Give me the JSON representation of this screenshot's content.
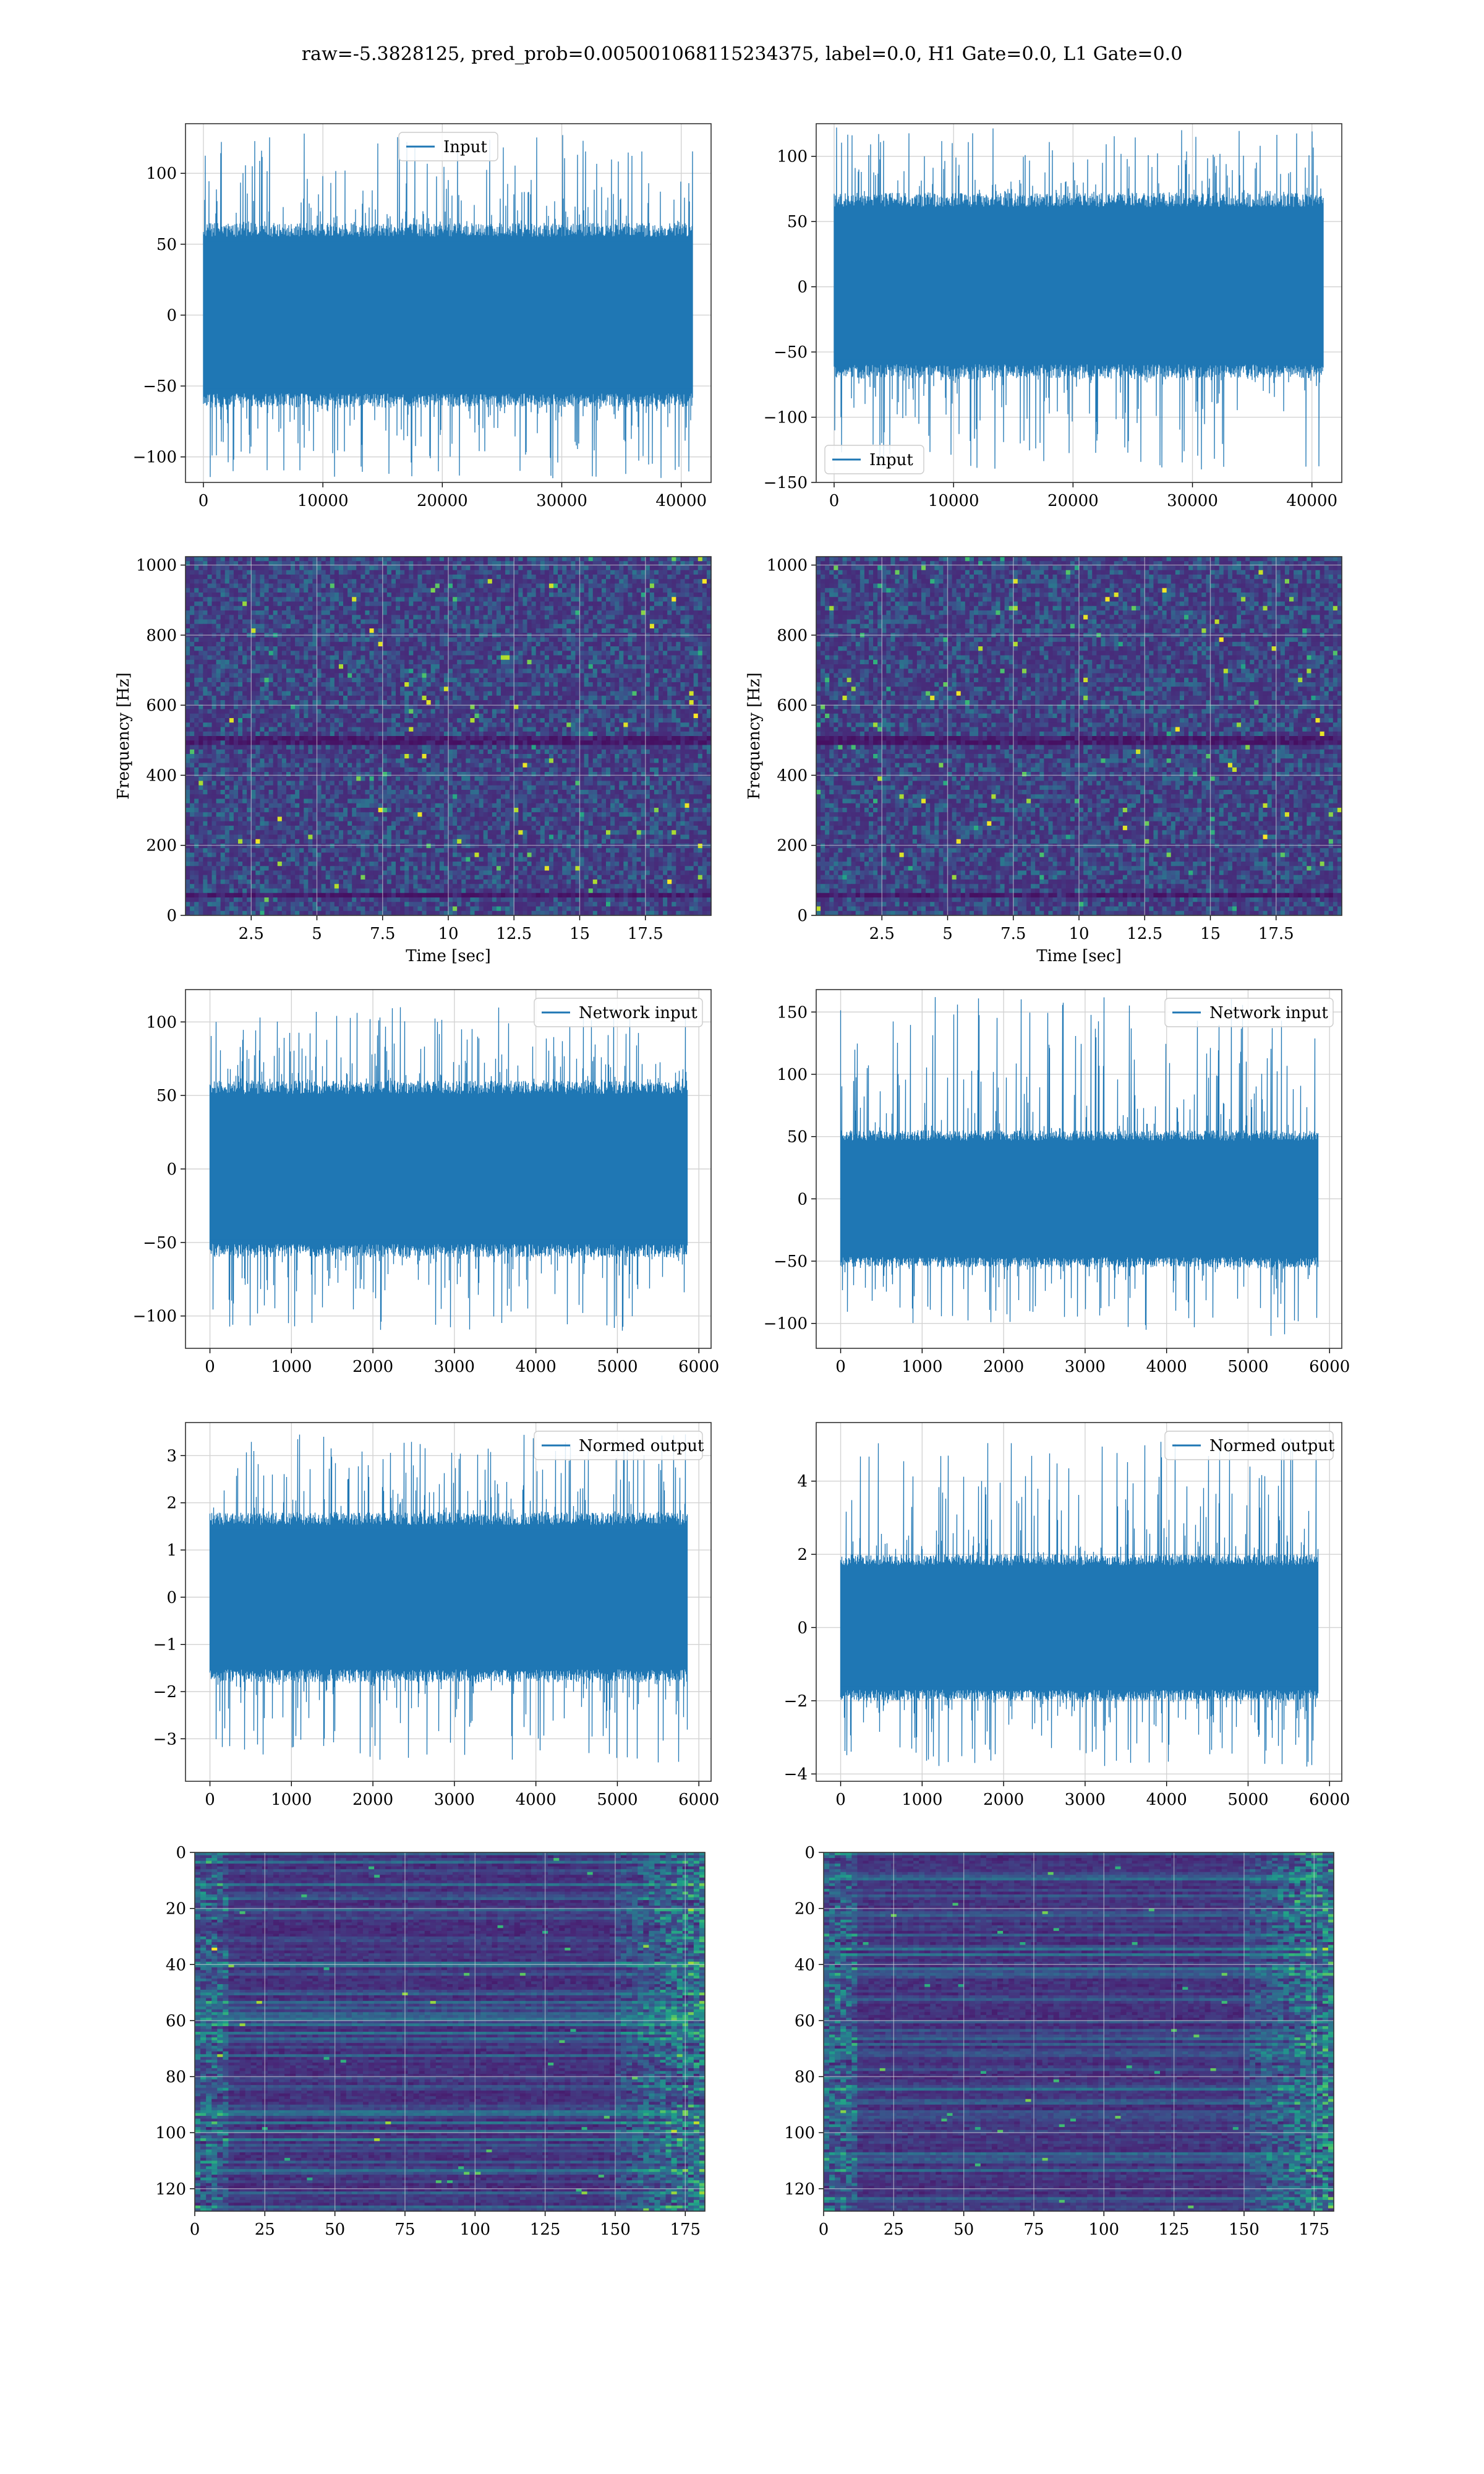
{
  "figure": {
    "suptitle": "raw=-5.3828125, pred_prob=0.005001068115234375, label=0.0, H1 Gate=0.0, L1 Gate=0.0",
    "line_color": "#1f77b4",
    "grid_color": "#d3d3d3"
  },
  "chart_data": [
    {
      "id": "input-h1",
      "type": "line",
      "series": [
        {
          "name": "Input"
        }
      ],
      "legend": "top-center",
      "grid": true,
      "xlim": [
        -1500,
        42500
      ],
      "ylim": [
        -118,
        135
      ],
      "xticks": [
        0,
        10000,
        20000,
        30000,
        40000
      ],
      "yticks": [
        -100,
        -50,
        0,
        50,
        100
      ],
      "x_range": [
        0,
        40960
      ],
      "amplitude_std": 28,
      "band": [
        -65,
        65
      ],
      "extremes": [
        -115,
        128
      ]
    },
    {
      "id": "input-l1",
      "type": "line",
      "series": [
        {
          "name": "Input"
        }
      ],
      "legend": "bottom-left",
      "grid": true,
      "xlim": [
        -1500,
        42500
      ],
      "ylim": [
        -150,
        125
      ],
      "xticks": [
        0,
        10000,
        20000,
        30000,
        40000
      ],
      "yticks": [
        -150,
        -100,
        -50,
        0,
        50,
        100
      ],
      "x_range": [
        0,
        40960
      ],
      "amplitude_std": 28,
      "band": [
        -70,
        72
      ],
      "extremes": [
        -140,
        122
      ]
    },
    {
      "id": "spectrogram-h1",
      "type": "heatmap",
      "colormap": "viridis",
      "xlabel": "Time [sec]",
      "ylabel": "Frequency [Hz]",
      "xlim": [
        0,
        20
      ],
      "ylim": [
        0,
        1024
      ],
      "xticks": [
        2.5,
        5.0,
        7.5,
        10.0,
        12.5,
        15.0,
        17.5
      ],
      "yticks": [
        0,
        200,
        400,
        600,
        800,
        1000
      ],
      "grid": true
    },
    {
      "id": "spectrogram-l1",
      "type": "heatmap",
      "colormap": "viridis",
      "xlabel": "Time [sec]",
      "ylabel": "Frequency [Hz]",
      "xlim": [
        0,
        20
      ],
      "ylim": [
        0,
        1024
      ],
      "xticks": [
        2.5,
        5.0,
        7.5,
        10.0,
        12.5,
        15.0,
        17.5
      ],
      "yticks": [
        0,
        200,
        400,
        600,
        800,
        1000
      ],
      "grid": true
    },
    {
      "id": "network-input-h1",
      "type": "line",
      "series": [
        {
          "name": "Network input"
        }
      ],
      "legend": "top-right",
      "grid": true,
      "xlim": [
        -300,
        6150
      ],
      "ylim": [
        -122,
        122
      ],
      "xticks": [
        0,
        1000,
        2000,
        3000,
        4000,
        5000,
        6000
      ],
      "yticks": [
        -100,
        -50,
        0,
        50,
        100
      ],
      "x_range": [
        0,
        5860
      ],
      "amplitude_std": 27,
      "band": [
        -60,
        60
      ],
      "extremes": [
        -110,
        110
      ]
    },
    {
      "id": "network-input-l1",
      "type": "line",
      "series": [
        {
          "name": "Network input"
        }
      ],
      "legend": "top-right",
      "grid": true,
      "xlim": [
        -300,
        6150
      ],
      "ylim": [
        -120,
        168
      ],
      "xticks": [
        0,
        1000,
        2000,
        3000,
        4000,
        5000,
        6000
      ],
      "yticks": [
        -100,
        -50,
        0,
        50,
        100,
        150
      ],
      "x_range": [
        0,
        5860
      ],
      "amplitude_std": 22,
      "band": [
        -55,
        55
      ],
      "extremes": [
        -110,
        162
      ]
    },
    {
      "id": "normed-output-h1",
      "type": "line",
      "series": [
        {
          "name": "Normed output"
        }
      ],
      "legend": "top-right",
      "grid": true,
      "xlim": [
        -300,
        6150
      ],
      "ylim": [
        -3.9,
        3.7
      ],
      "xticks": [
        0,
        1000,
        2000,
        3000,
        4000,
        5000,
        6000
      ],
      "yticks": [
        -3,
        -2,
        -1,
        0,
        1,
        2,
        3
      ],
      "x_range": [
        0,
        5860
      ],
      "amplitude_std": 0.85,
      "band": [
        -1.8,
        1.8
      ],
      "extremes": [
        -3.5,
        3.45
      ]
    },
    {
      "id": "normed-output-l1",
      "type": "line",
      "series": [
        {
          "name": "Normed output"
        }
      ],
      "legend": "top-right",
      "grid": true,
      "xlim": [
        -300,
        6150
      ],
      "ylim": [
        -4.2,
        5.6
      ],
      "xticks": [
        0,
        1000,
        2000,
        3000,
        4000,
        5000,
        6000
      ],
      "yticks": [
        -4,
        -2,
        0,
        2,
        4
      ],
      "x_range": [
        0,
        5860
      ],
      "amplitude_std": 0.8,
      "band": [
        -2.0,
        2.0
      ],
      "extremes": [
        -3.8,
        5.2
      ]
    },
    {
      "id": "activation-h1",
      "type": "heatmap",
      "colormap": "viridis",
      "xlim": [
        0,
        182
      ],
      "ylim": [
        128,
        0
      ],
      "xticks": [
        0,
        25,
        50,
        75,
        100,
        125,
        150,
        175
      ],
      "yticks": [
        0,
        20,
        40,
        60,
        80,
        100,
        120
      ],
      "grid": true
    },
    {
      "id": "activation-l1",
      "type": "heatmap",
      "colormap": "viridis",
      "xlim": [
        0,
        182
      ],
      "ylim": [
        128,
        0
      ],
      "xticks": [
        0,
        25,
        50,
        75,
        100,
        125,
        150,
        175
      ],
      "yticks": [
        0,
        20,
        40,
        60,
        80,
        100,
        120
      ],
      "grid": true
    }
  ]
}
